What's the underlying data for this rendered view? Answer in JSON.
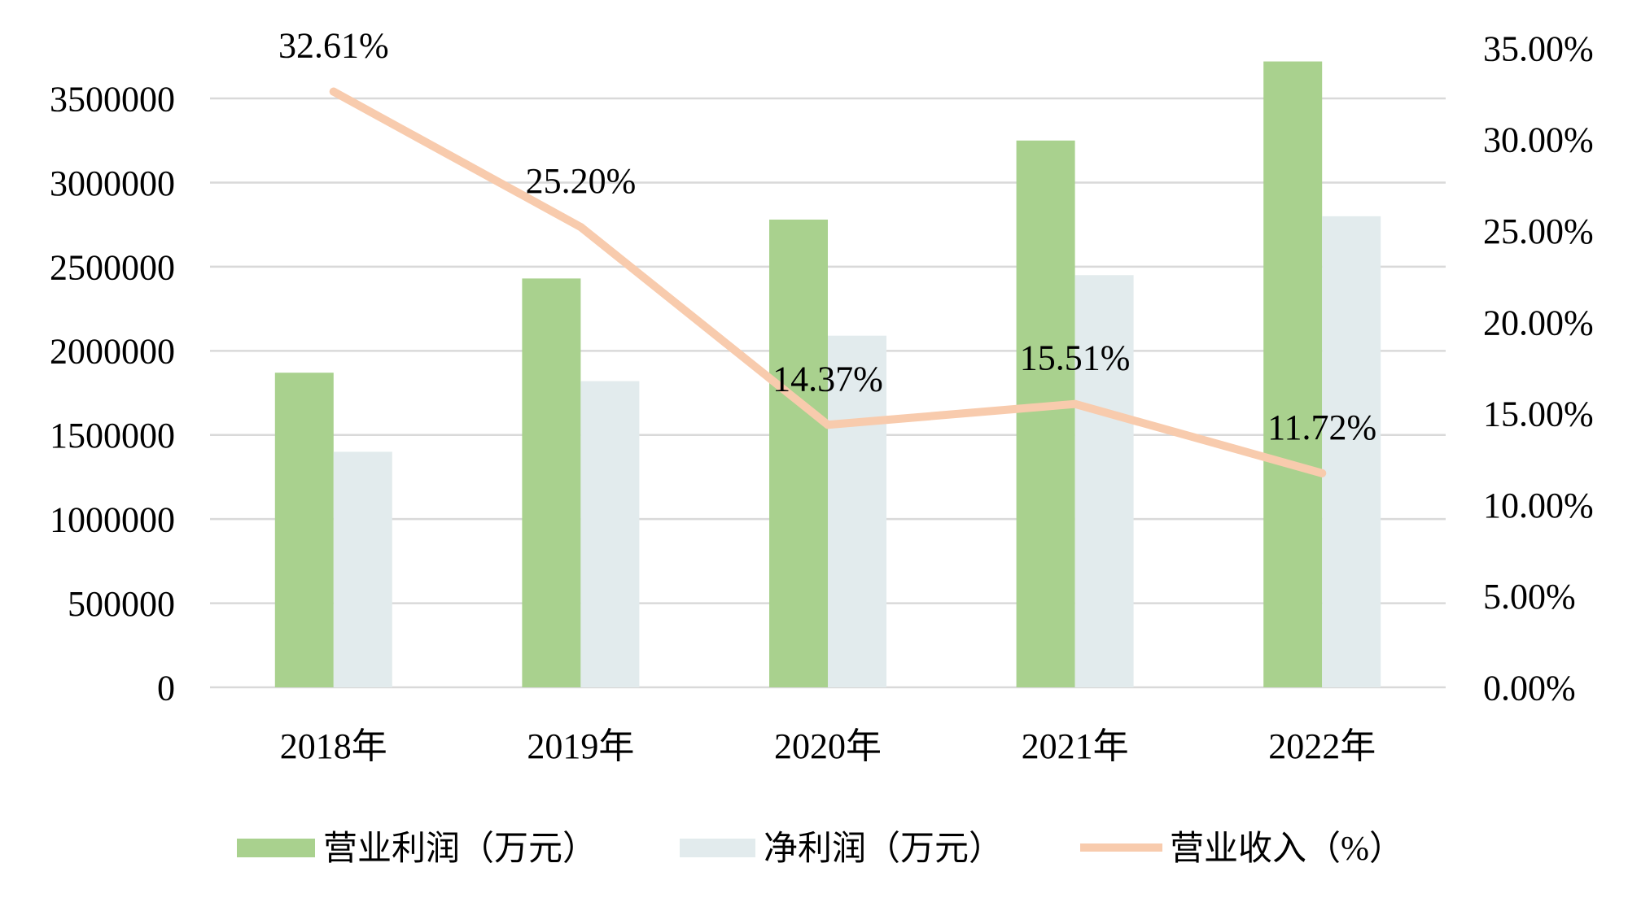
{
  "chart_data": {
    "type": "bar",
    "categories": [
      "2018年",
      "2019年",
      "2020年",
      "2021年",
      "2022年"
    ],
    "series": [
      {
        "name": "营业利润（万元）",
        "type": "bar",
        "axis": "left",
        "color": "#A9D18E",
        "values": [
          1870000,
          2430000,
          2780000,
          3250000,
          3720000
        ]
      },
      {
        "name": "净利润（万元）",
        "type": "bar",
        "axis": "left",
        "color": "#E2EBED",
        "values": [
          1400000,
          1820000,
          2090000,
          2450000,
          2800000
        ]
      },
      {
        "name": "营业收入（%）",
        "type": "line",
        "axis": "right",
        "color": "#F8CBAD",
        "values": [
          32.61,
          25.2,
          14.37,
          15.51,
          11.72
        ],
        "data_labels": [
          "32.61%",
          "25.20%",
          "14.37%",
          "15.51%",
          "11.72%"
        ]
      }
    ],
    "y_axis": {
      "range": [
        0,
        3800000
      ],
      "tick_labels": [
        "0",
        "500000",
        "1000000",
        "1500000",
        "2000000",
        "2500000",
        "3000000",
        "3500000"
      ]
    },
    "y2_axis": {
      "range": [
        0,
        35
      ],
      "tick_labels": [
        "0.00%",
        "5.00%",
        "10.00%",
        "15.00%",
        "20.00%",
        "25.00%",
        "30.00%",
        "35.00%"
      ]
    },
    "grid": true,
    "legend_position": "bottom"
  }
}
